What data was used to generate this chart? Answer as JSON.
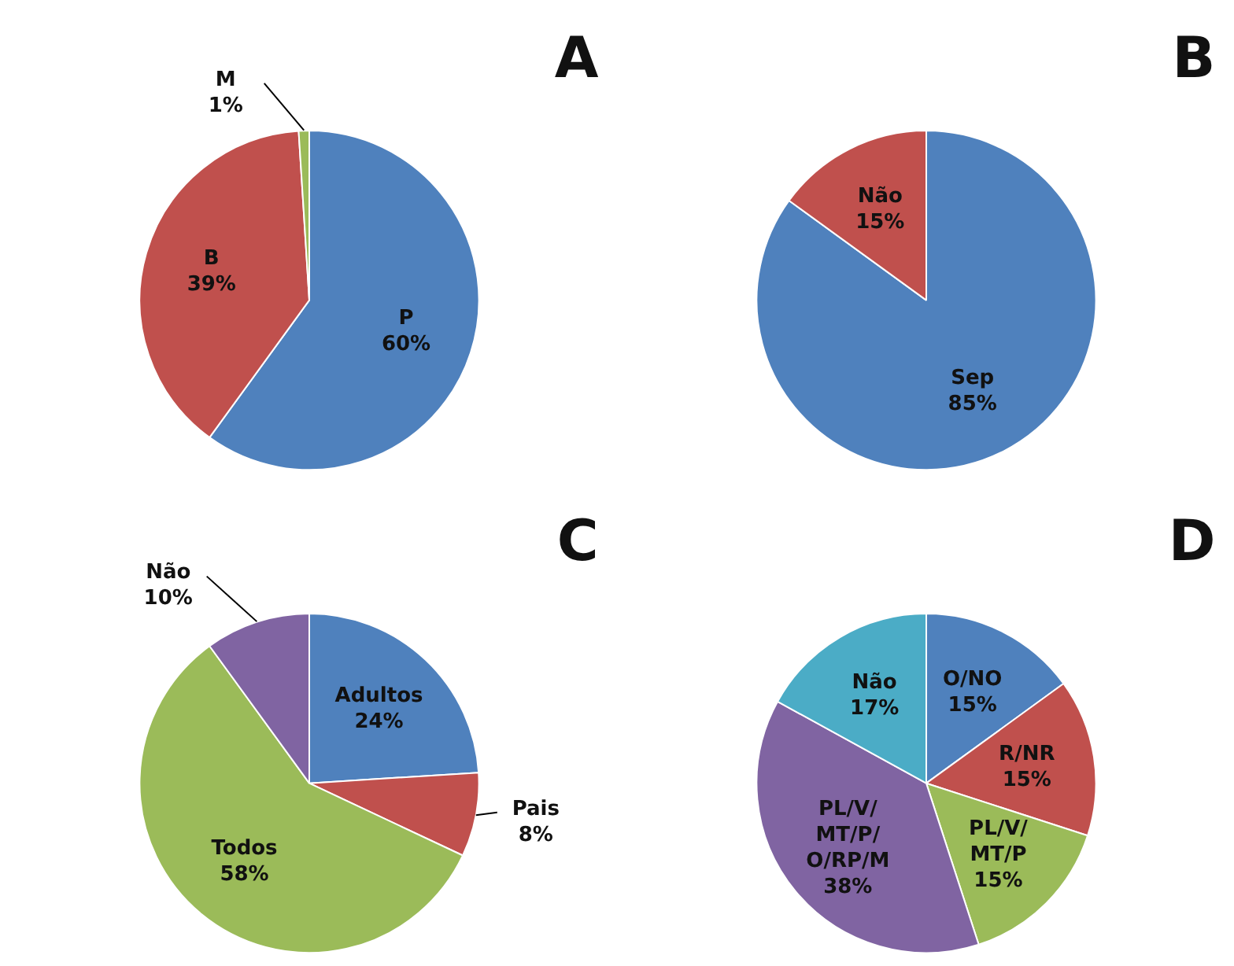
{
  "chart_data": [
    {
      "type": "pie",
      "title": "A",
      "categories": [
        "P",
        "B",
        "M"
      ],
      "values": [
        60,
        39,
        1
      ],
      "colors": [
        "#4f81bd",
        "#c0504d",
        "#9bbb59"
      ],
      "value_labels": [
        "60%",
        "39%",
        "1%"
      ]
    },
    {
      "type": "pie",
      "title": "B",
      "categories": [
        "Sep",
        "Não"
      ],
      "values": [
        85,
        15
      ],
      "colors": [
        "#4f81bd",
        "#c0504d"
      ],
      "value_labels": [
        "85%",
        "15%"
      ]
    },
    {
      "type": "pie",
      "title": "C",
      "categories": [
        "Adultos",
        "Pais",
        "Todos",
        "Não"
      ],
      "values": [
        24,
        8,
        58,
        10
      ],
      "colors": [
        "#4f81bd",
        "#c0504d",
        "#9bbb59",
        "#8064a2"
      ],
      "value_labels": [
        "24%",
        "8%",
        "58%",
        "10%"
      ]
    },
    {
      "type": "pie",
      "title": "D",
      "categories": [
        "O/NO",
        "R/NR",
        "PL/V/MT/P",
        "PL/V/MT/P/O/RP/M",
        "Não"
      ],
      "values": [
        15,
        15,
        15,
        38,
        17
      ],
      "colors": [
        "#4f81bd",
        "#c0504d",
        "#9bbb59",
        "#8064a2",
        "#4bacc6"
      ],
      "value_labels": [
        "15%",
        "15%",
        "15%",
        "38%",
        "17%"
      ]
    }
  ]
}
